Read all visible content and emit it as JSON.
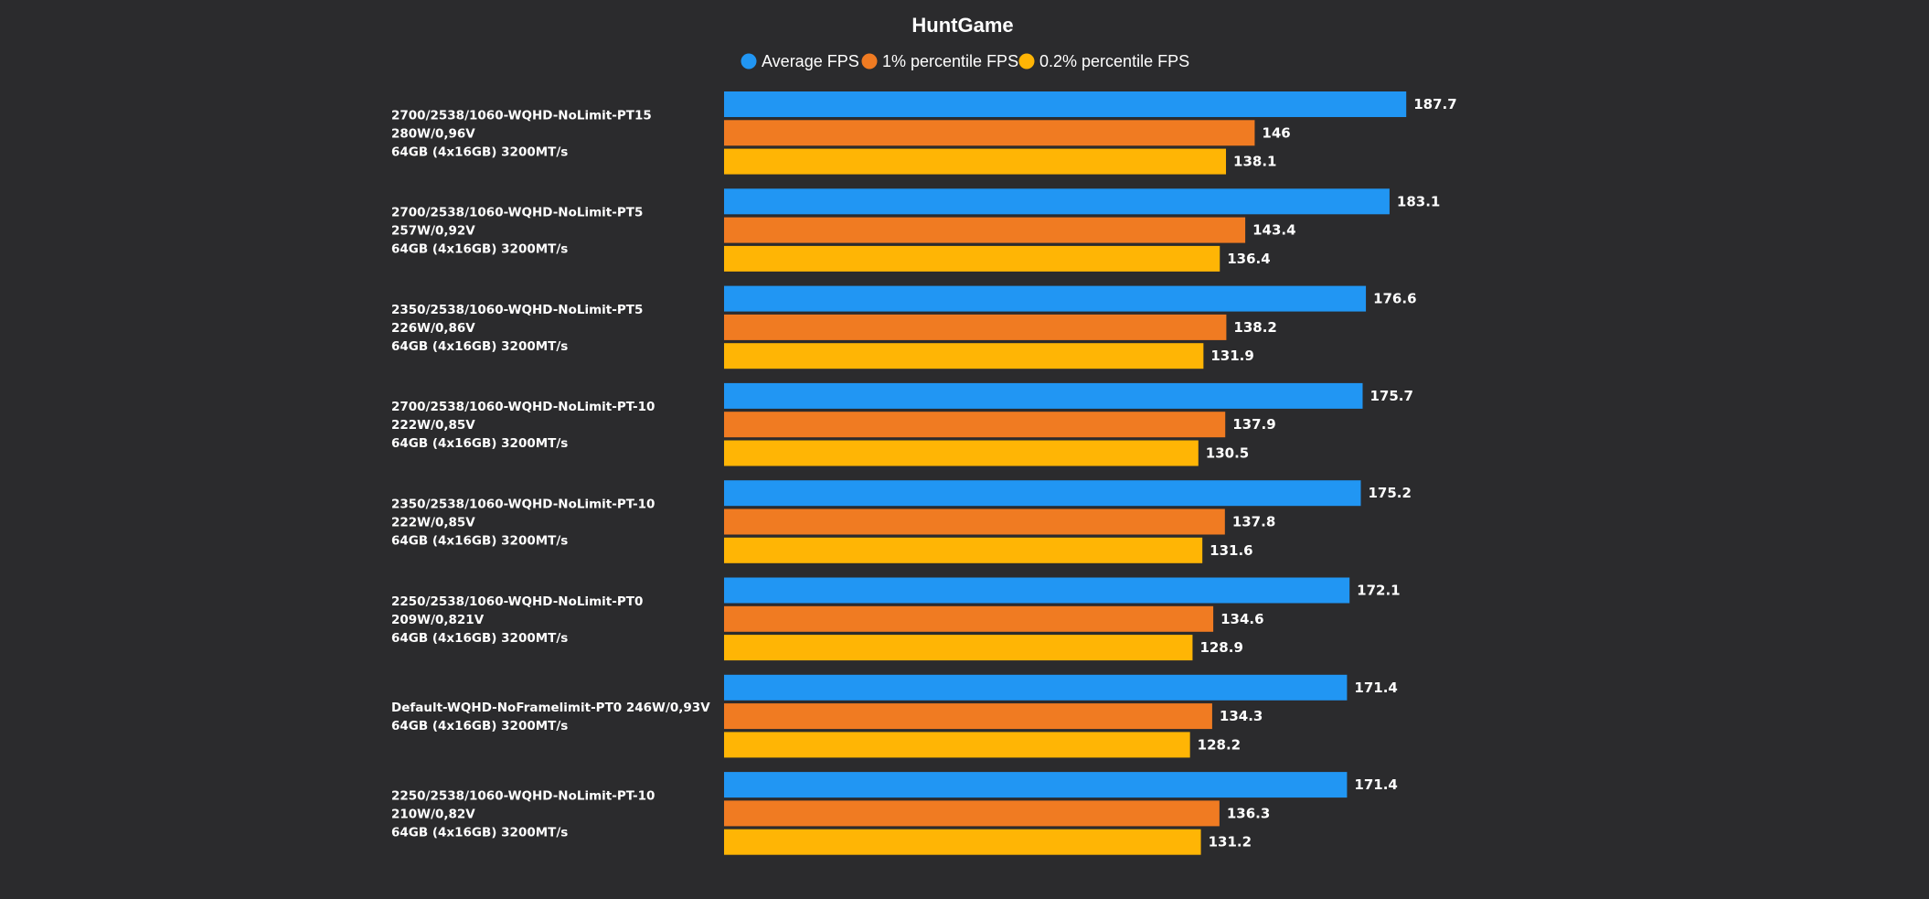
{
  "chart_data": {
    "type": "bar",
    "orientation": "horizontal",
    "title": "HuntGame",
    "xlabel": "",
    "ylabel": "",
    "xlim": [
      0,
      220
    ],
    "grid": false,
    "legend_position": "top-center",
    "categories": [
      {
        "lines": [
          "2700/2538/1060-WQHD-NoLimit-PT15",
          "280W/0,96V",
          "64GB (4x16GB) 3200MT/s"
        ]
      },
      {
        "lines": [
          "2700/2538/1060-WQHD-NoLimit-PT5",
          "257W/0,92V",
          "64GB (4x16GB) 3200MT/s"
        ]
      },
      {
        "lines": [
          "2350/2538/1060-WQHD-NoLimit-PT5",
          "226W/0,86V",
          "64GB (4x16GB) 3200MT/s"
        ]
      },
      {
        "lines": [
          "2700/2538/1060-WQHD-NoLimit-PT-10",
          "222W/0,85V",
          "64GB (4x16GB) 3200MT/s"
        ]
      },
      {
        "lines": [
          "2350/2538/1060-WQHD-NoLimit-PT-10",
          "222W/0,85V",
          "64GB (4x16GB) 3200MT/s"
        ]
      },
      {
        "lines": [
          "2250/2538/1060-WQHD-NoLimit-PT0",
          "209W/0,821V",
          "64GB (4x16GB) 3200MT/s"
        ]
      },
      {
        "lines": [
          "Default-WQHD-NoFramelimit-PT0 246W/0,93V",
          "64GB (4x16GB) 3200MT/s"
        ]
      },
      {
        "lines": [
          "2250/2538/1060-WQHD-NoLimit-PT-10",
          "210W/0,82V",
          "64GB (4x16GB) 3200MT/s"
        ]
      }
    ],
    "series": [
      {
        "name": "Average FPS",
        "color": "#2196f3",
        "values": [
          187.7,
          183.1,
          176.6,
          175.7,
          175.2,
          172.1,
          171.4,
          171.4
        ]
      },
      {
        "name": "1% percentile FPS",
        "color": "#f07b22",
        "values": [
          146,
          143.4,
          138.2,
          137.9,
          137.8,
          134.6,
          134.3,
          136.3
        ]
      },
      {
        "name": "0.2% percentile FPS",
        "color": "#ffb505",
        "values": [
          138.1,
          136.4,
          131.9,
          130.5,
          131.6,
          128.9,
          128.2,
          131.2
        ]
      }
    ]
  }
}
